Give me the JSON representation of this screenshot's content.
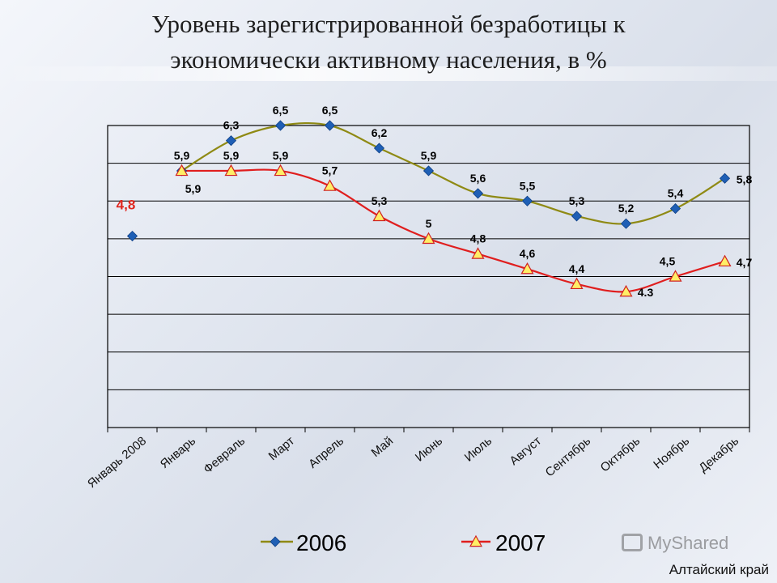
{
  "slide": {
    "title_line1": "Уровень зарегистрированной безработицы к",
    "title_line2": "экономически активному населения, в %",
    "region": "Алтайский край",
    "watermark": "MyShared"
  },
  "colors": {
    "series_2006_line": "#8f8a14",
    "series_2006_marker": "#1f5fb5",
    "series_2007_line": "#e01e1e",
    "series_2007_marker": "#ffee66",
    "first_point_label": "#e0261e"
  },
  "chart_data": {
    "type": "line",
    "title": "",
    "xlabel": "",
    "ylabel": "",
    "ylim": [
      2.5,
      6.5
    ],
    "grid": true,
    "legend": "bottom",
    "categories": [
      "Январь 2008",
      "Январь",
      "Февраль",
      "Март",
      "Апрель",
      "Май",
      "Июнь",
      "Июль",
      "Август",
      "Сентябрь",
      "Октябрь",
      "Ноябрь",
      "Декабрь"
    ],
    "series": [
      {
        "name": "2006",
        "values": [
          4.8,
          5.9,
          6.3,
          6.5,
          6.5,
          6.2,
          5.9,
          5.6,
          5.5,
          5.3,
          5.2,
          5.4,
          5.8
        ],
        "labels": [
          "4,8",
          "5,9",
          "6,3",
          "6,5",
          "6,5",
          "6,2",
          "5,9",
          "5,6",
          "5,5",
          "5,3",
          "5,2",
          "5,4",
          "5,8"
        ]
      },
      {
        "name": "2007",
        "values": [
          null,
          5.9,
          5.9,
          5.9,
          5.7,
          5.3,
          5.0,
          4.8,
          4.6,
          4.4,
          4.3,
          4.5,
          4.7
        ],
        "labels": [
          null,
          "5,9",
          "5,9",
          "5,9",
          "5,7",
          "5,3",
          "5",
          "4,8",
          "4,6",
          "4,4",
          "4.3",
          "4,5",
          "4,7"
        ]
      }
    ]
  }
}
